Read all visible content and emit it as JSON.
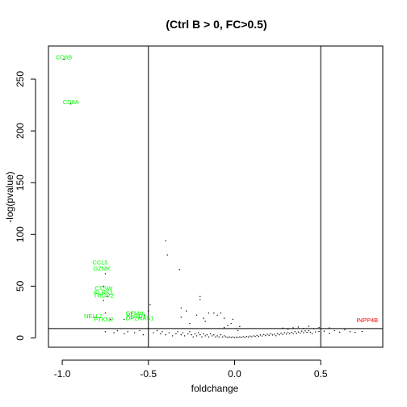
{
  "chart_data": {
    "type": "scatter",
    "title": "(Ctrl B > 0, FC>0.5)",
    "xlabel": "foldchange",
    "ylabel": "-log(pvalue)",
    "xlim": [
      -1.08,
      0.86
    ],
    "ylim": [
      -9,
      282
    ],
    "x_ticks": [
      -1.0,
      -0.5,
      0.0,
      0.5
    ],
    "x_tick_labels": [
      "-1.0",
      "-0.5",
      "0.0",
      "0.5"
    ],
    "y_ticks": [
      0,
      50,
      100,
      150,
      200,
      250
    ],
    "y_tick_labels": [
      "0",
      "50",
      "100",
      "150",
      "200",
      "250"
    ],
    "reference_lines": {
      "vertical": [
        -0.5,
        0.5
      ],
      "horizontal": [
        9
      ]
    },
    "grid": false,
    "legend": "none",
    "colors": {
      "points": "#000000",
      "down_labels": "#00ff00",
      "up_labels": "#ff0000"
    },
    "labeled_points": [
      {
        "label": "CD8B",
        "x": -0.99,
        "y": 269,
        "color": "#00ff00"
      },
      {
        "label": "CD8A",
        "x": -0.95,
        "y": 226,
        "color": "#00ff00"
      },
      {
        "label": "CCL5",
        "x": -0.78,
        "y": 71,
        "color": "#00ff00"
      },
      {
        "label": "GZMK",
        "x": -0.77,
        "y": 65,
        "color": "#00ff00"
      },
      {
        "label": "CTSW",
        "x": -0.76,
        "y": 46,
        "color": "#00ff00"
      },
      {
        "label": "KLRK1",
        "x": -0.76,
        "y": 42,
        "color": "#00ff00"
      },
      {
        "label": "TRGV2",
        "x": -0.76,
        "y": 39,
        "color": "#00ff00"
      },
      {
        "label": "NELL2",
        "x": -0.82,
        "y": 19,
        "color": "#00ff00"
      },
      {
        "label": "PTKN2",
        "x": -0.76,
        "y": 16,
        "color": "#00ff00"
      },
      {
        "label": "GZMH",
        "x": -0.58,
        "y": 22,
        "color": "#00ff00"
      },
      {
        "label": "KLRD1",
        "x": -0.57,
        "y": 19,
        "color": "#00ff00"
      },
      {
        "label": "DPZNAS1",
        "x": -0.55,
        "y": 17,
        "color": "#00ff00"
      },
      {
        "label": "INPP4B",
        "x": 0.77,
        "y": 15,
        "color": "#ff0000"
      }
    ],
    "points": [
      [
        -0.99,
        269
      ],
      [
        -0.95,
        226
      ],
      [
        -0.75,
        62
      ],
      [
        -0.76,
        50
      ],
      [
        -0.74,
        40
      ],
      [
        -0.76,
        36
      ],
      [
        -0.75,
        24
      ],
      [
        -0.81,
        20
      ],
      [
        -0.72,
        18
      ],
      [
        -0.64,
        18
      ],
      [
        -0.6,
        24
      ],
      [
        -0.55,
        20
      ],
      [
        -0.52,
        22
      ],
      [
        -0.5,
        26
      ],
      [
        -0.49,
        32
      ],
      [
        -0.4,
        94
      ],
      [
        -0.39,
        80
      ],
      [
        -0.32,
        66
      ],
      [
        -0.31,
        29
      ],
      [
        -0.31,
        20
      ],
      [
        -0.28,
        26
      ],
      [
        -0.26,
        14
      ],
      [
        -0.22,
        22
      ],
      [
        -0.2,
        40
      ],
      [
        -0.2,
        37
      ],
      [
        -0.18,
        19
      ],
      [
        -0.17,
        16
      ],
      [
        -0.15,
        24
      ],
      [
        -0.12,
        24
      ],
      [
        -0.1,
        22
      ],
      [
        -0.08,
        24
      ],
      [
        -0.06,
        19
      ],
      [
        -0.06,
        10
      ],
      [
        -0.04,
        12
      ],
      [
        -0.02,
        14
      ],
      [
        -0.01,
        18
      ],
      [
        0.01,
        9
      ],
      [
        0.02,
        7
      ],
      [
        0.03,
        11
      ],
      [
        -0.75,
        6
      ],
      [
        -0.7,
        5
      ],
      [
        -0.68,
        7
      ],
      [
        -0.64,
        4
      ],
      [
        -0.62,
        6
      ],
      [
        -0.58,
        5
      ],
      [
        -0.55,
        7
      ],
      [
        -0.53,
        3
      ],
      [
        -0.47,
        5
      ],
      [
        -0.45,
        7
      ],
      [
        -0.43,
        4
      ],
      [
        -0.42,
        6
      ],
      [
        -0.4,
        3
      ],
      [
        -0.38,
        5
      ],
      [
        -0.36,
        2
      ],
      [
        -0.34,
        4
      ],
      [
        -0.33,
        6
      ],
      [
        -0.31,
        3
      ],
      [
        -0.3,
        5
      ],
      [
        -0.29,
        2
      ],
      [
        -0.27,
        4
      ],
      [
        -0.26,
        6
      ],
      [
        -0.25,
        3
      ],
      [
        -0.24,
        1
      ],
      [
        -0.23,
        4
      ],
      [
        -0.22,
        2
      ],
      [
        -0.21,
        5
      ],
      [
        -0.2,
        3
      ],
      [
        -0.19,
        1
      ],
      [
        -0.18,
        4
      ],
      [
        -0.17,
        2
      ],
      [
        -0.16,
        3
      ],
      [
        -0.15,
        1
      ],
      [
        -0.14,
        4
      ],
      [
        -0.13,
        2
      ],
      [
        -0.12,
        3
      ],
      [
        -0.11,
        1
      ],
      [
        -0.1,
        2
      ],
      [
        -0.09,
        1
      ],
      [
        -0.08,
        3
      ],
      [
        -0.07,
        1
      ],
      [
        -0.06,
        2
      ],
      [
        -0.05,
        1
      ],
      [
        -0.04,
        0.5
      ],
      [
        -0.03,
        1
      ],
      [
        -0.02,
        0.5
      ],
      [
        -0.01,
        1
      ],
      [
        0.0,
        0.3
      ],
      [
        0.01,
        0.8
      ],
      [
        0.02,
        0.5
      ],
      [
        0.03,
        1
      ],
      [
        0.04,
        0.6
      ],
      [
        0.05,
        1.2
      ],
      [
        0.06,
        0.7
      ],
      [
        0.07,
        1.5
      ],
      [
        0.08,
        0.9
      ],
      [
        0.09,
        1.8
      ],
      [
        0.1,
        1.1
      ],
      [
        0.11,
        2
      ],
      [
        0.12,
        1.3
      ],
      [
        0.13,
        2.4
      ],
      [
        0.14,
        1.6
      ],
      [
        0.15,
        2.8
      ],
      [
        0.16,
        1.9
      ],
      [
        0.17,
        3.2
      ],
      [
        0.18,
        2.2
      ],
      [
        0.19,
        3.5
      ],
      [
        0.2,
        2.5
      ],
      [
        0.21,
        4
      ],
      [
        0.22,
        2.8
      ],
      [
        0.23,
        3.6
      ],
      [
        0.24,
        2.1
      ],
      [
        0.25,
        4.2
      ],
      [
        0.26,
        3
      ],
      [
        0.27,
        4.6
      ],
      [
        0.28,
        3.3
      ],
      [
        0.29,
        5
      ],
      [
        0.3,
        3.7
      ],
      [
        0.31,
        5.2
      ],
      [
        0.32,
        4
      ],
      [
        0.33,
        5.5
      ],
      [
        0.34,
        4.2
      ],
      [
        0.35,
        6
      ],
      [
        0.36,
        4.5
      ],
      [
        0.37,
        5.8
      ],
      [
        0.38,
        4.8
      ],
      [
        0.39,
        6.5
      ],
      [
        0.4,
        5
      ],
      [
        0.41,
        6.8
      ],
      [
        0.42,
        5.3
      ],
      [
        0.43,
        7
      ],
      [
        0.44,
        5.5
      ],
      [
        0.45,
        4.2
      ],
      [
        0.47,
        5.8
      ],
      [
        0.49,
        6.3
      ],
      [
        0.52,
        6.5
      ],
      [
        0.55,
        4.5
      ],
      [
        0.58,
        7
      ],
      [
        0.61,
        5.5
      ],
      [
        0.64,
        8
      ],
      [
        0.67,
        6
      ],
      [
        0.7,
        5.3
      ],
      [
        0.74,
        6.2
      ],
      [
        0.28,
        9.5
      ],
      [
        0.31,
        8.5
      ],
      [
        0.34,
        9.8
      ],
      [
        0.37,
        10.5
      ],
      [
        0.4,
        9.2
      ],
      [
        0.43,
        11.2
      ],
      [
        0.46,
        8.8
      ],
      [
        0.49,
        10.1
      ],
      [
        0.55,
        9.7
      ]
    ]
  }
}
